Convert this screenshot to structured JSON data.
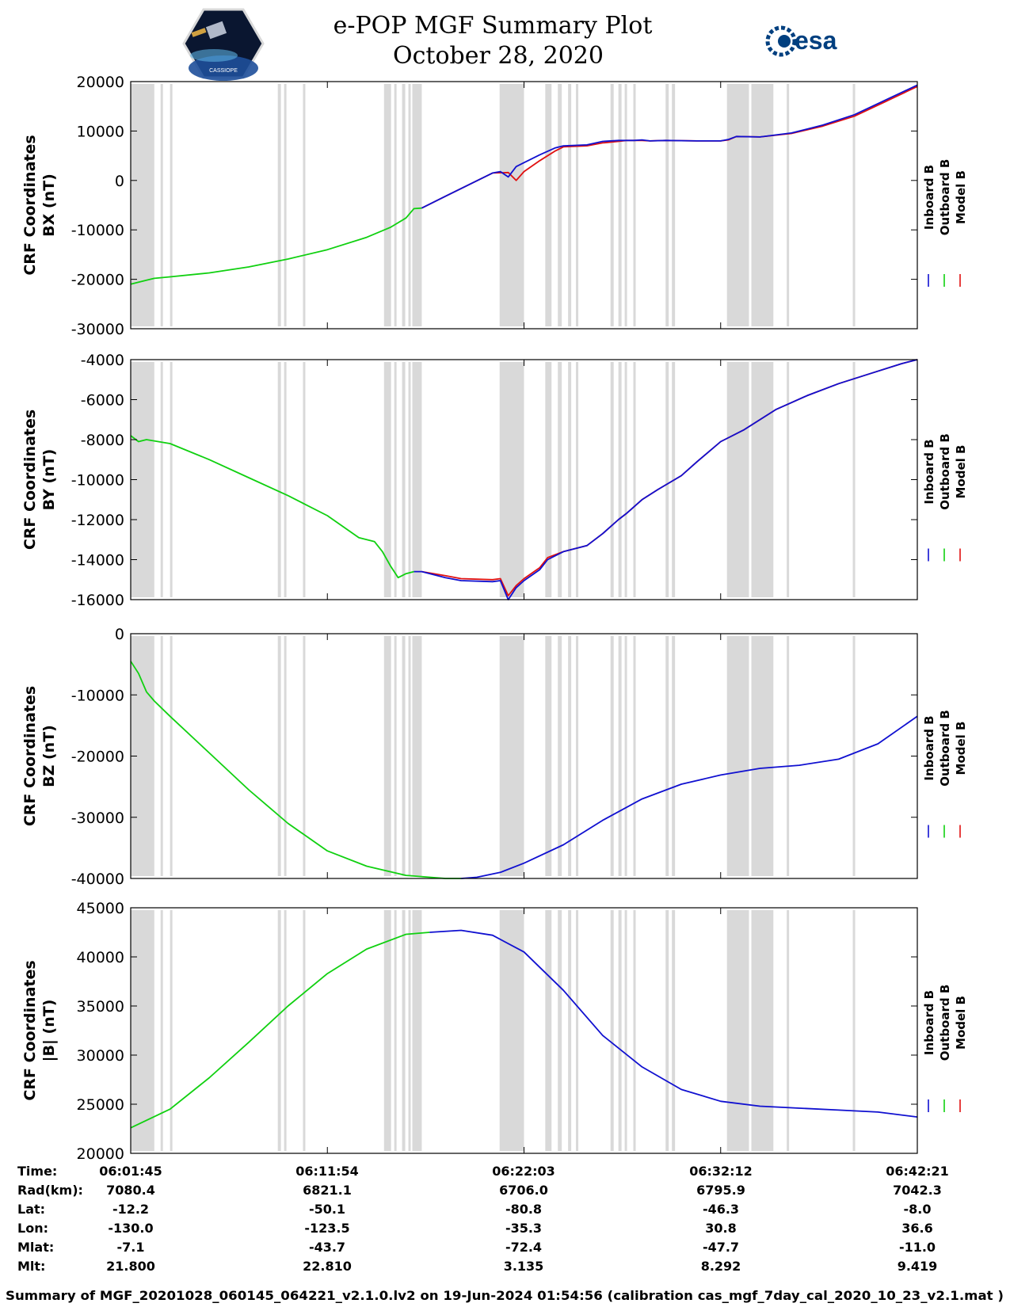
{
  "header": {
    "title_line1": "e-POP MGF Summary Plot",
    "title_line2": "October 28, 2020",
    "logo_left_text": "CASSIOPE",
    "logo_right_text": "esa"
  },
  "legend": {
    "labels": [
      "Inboard B",
      "Outboard B",
      "Model B"
    ],
    "colors": [
      "#1010d0",
      "#10d010",
      "#e01010"
    ]
  },
  "data_gaps": [
    [
      0.0,
      0.03
    ],
    [
      0.038,
      0.041
    ],
    [
      0.05,
      0.053
    ],
    [
      0.187,
      0.191
    ],
    [
      0.195,
      0.198
    ],
    [
      0.219,
      0.222
    ],
    [
      0.322,
      0.331
    ],
    [
      0.335,
      0.338
    ],
    [
      0.345,
      0.349
    ],
    [
      0.353,
      0.356
    ],
    [
      0.358,
      0.37
    ],
    [
      0.469,
      0.5
    ],
    [
      0.527,
      0.535
    ],
    [
      0.543,
      0.548
    ],
    [
      0.556,
      0.56
    ],
    [
      0.566,
      0.569
    ],
    [
      0.61,
      0.614
    ],
    [
      0.62,
      0.624
    ],
    [
      0.628,
      0.631
    ],
    [
      0.639,
      0.642
    ],
    [
      0.68,
      0.684
    ],
    [
      0.688,
      0.692
    ],
    [
      0.758,
      0.786
    ],
    [
      0.789,
      0.817
    ],
    [
      0.834,
      0.837
    ],
    [
      0.918,
      0.921
    ]
  ],
  "chart_data": [
    {
      "type": "line",
      "id": "bx",
      "ylabel_line1": "CRF Coordinates",
      "ylabel_line2": "BX (nT)",
      "ylim": [
        -30000,
        20000
      ],
      "yticks": [
        20000,
        10000,
        0,
        -10000,
        -20000,
        -30000
      ],
      "xlim": [
        0,
        1
      ],
      "series": [
        {
          "name": "Model B",
          "color": "#e01010",
          "x": [
            0.37,
            0.4,
            0.46,
            0.48,
            0.49,
            0.5,
            0.52,
            0.54,
            0.55,
            0.58,
            0.6,
            0.62,
            0.63,
            0.64,
            0.65,
            0.66,
            0.68,
            0.72,
            0.75,
            0.76,
            0.77,
            0.8,
            0.84,
            0.88,
            0.92,
            0.96,
            1.0
          ],
          "y": [
            -5600,
            -3200,
            1500,
            1600,
            0,
            1800,
            4000,
            6000,
            6800,
            7000,
            7600,
            7900,
            8100,
            8100,
            8100,
            8000,
            8100,
            8000,
            8000,
            8200,
            8900,
            8800,
            9500,
            11000,
            13000,
            16000,
            19000
          ]
        },
        {
          "name": "Outboard B",
          "color": "#10d010",
          "x": [
            0.0,
            0.01,
            0.02,
            0.03,
            0.05,
            0.1,
            0.15,
            0.2,
            0.25,
            0.3,
            0.33,
            0.35,
            0.36,
            0.37
          ],
          "y": [
            -21000,
            -20600,
            -20200,
            -19800,
            -19500,
            -18700,
            -17500,
            -15900,
            -14000,
            -11500,
            -9500,
            -7600,
            -5700,
            -5600
          ]
        },
        {
          "name": "Inboard B",
          "color": "#1010d0",
          "x": [
            0.37,
            0.4,
            0.46,
            0.47,
            0.48,
            0.49,
            0.5,
            0.52,
            0.54,
            0.55,
            0.58,
            0.6,
            0.62,
            0.63,
            0.64,
            0.65,
            0.66,
            0.68,
            0.72,
            0.75,
            0.76,
            0.77,
            0.8,
            0.84,
            0.88,
            0.92,
            0.96,
            1.0
          ],
          "y": [
            -5600,
            -3200,
            1500,
            1800,
            700,
            2800,
            3600,
            5200,
            6600,
            7000,
            7200,
            7900,
            8100,
            8100,
            8100,
            8200,
            8000,
            8100,
            8000,
            8000,
            8300,
            8900,
            8800,
            9600,
            11200,
            13300,
            16300,
            19300
          ]
        }
      ]
    },
    {
      "type": "line",
      "id": "by",
      "ylabel_line1": "CRF Coordinates",
      "ylabel_line2": "BY (nT)",
      "ylim": [
        -16000,
        -4000
      ],
      "yticks": [
        -4000,
        -6000,
        -8000,
        -10000,
        -12000,
        -14000,
        -16000
      ],
      "xlim": [
        0,
        1
      ],
      "series": [
        {
          "name": "Model B",
          "color": "#e01010",
          "x": [
            0.37,
            0.4,
            0.42,
            0.46,
            0.47,
            0.48,
            0.49,
            0.5,
            0.52,
            0.53,
            0.55,
            0.58,
            0.6,
            0.62,
            0.63,
            0.65,
            0.67,
            0.7,
            0.72,
            0.75,
            0.76,
            0.78,
            0.82,
            0.86,
            0.9,
            0.94,
            0.98,
            1.0
          ],
          "y": [
            -14600,
            -14800,
            -14950,
            -15000,
            -14950,
            -15800,
            -15300,
            -14950,
            -14400,
            -13900,
            -13600,
            -13300,
            -12700,
            -12000,
            -11700,
            -11000,
            -10500,
            -9800,
            -9100,
            -8100,
            -7900,
            -7500,
            -6500,
            -5800,
            -5200,
            -4700,
            -4200,
            -4000
          ]
        },
        {
          "name": "Outboard B",
          "color": "#10d010",
          "x": [
            0.0,
            0.01,
            0.02,
            0.05,
            0.1,
            0.15,
            0.2,
            0.25,
            0.29,
            0.31,
            0.32,
            0.33,
            0.34,
            0.35,
            0.36
          ],
          "y": [
            -7800,
            -8100,
            -8000,
            -8200,
            -9000,
            -9900,
            -10800,
            -11800,
            -12900,
            -13100,
            -13600,
            -14300,
            -14900,
            -14700,
            -14600
          ]
        },
        {
          "name": "Inboard B",
          "color": "#1010d0",
          "x": [
            0.36,
            0.37,
            0.4,
            0.42,
            0.46,
            0.47,
            0.48,
            0.49,
            0.5,
            0.52,
            0.53,
            0.55,
            0.58,
            0.6,
            0.62,
            0.63,
            0.65,
            0.67,
            0.7,
            0.72,
            0.75,
            0.76,
            0.78,
            0.82,
            0.86,
            0.9,
            0.94,
            0.98,
            1.0
          ],
          "y": [
            -14600,
            -14600,
            -14900,
            -15050,
            -15100,
            -15050,
            -16000,
            -15400,
            -15050,
            -14500,
            -14000,
            -13600,
            -13300,
            -12700,
            -12000,
            -11700,
            -11000,
            -10500,
            -9800,
            -9100,
            -8100,
            -7900,
            -7500,
            -6500,
            -5800,
            -5200,
            -4700,
            -4200,
            -4000
          ]
        }
      ]
    },
    {
      "type": "line",
      "id": "bz",
      "ylabel_line1": "CRF Coordinates",
      "ylabel_line2": "BZ (nT)",
      "ylim": [
        -40000,
        0
      ],
      "yticks": [
        0,
        -10000,
        -20000,
        -30000,
        -40000
      ],
      "xlim": [
        0,
        1
      ],
      "series": [
        {
          "name": "Model B",
          "color": "#e01010",
          "x": [],
          "y": []
        },
        {
          "name": "Outboard B",
          "color": "#10d010",
          "x": [
            0.0,
            0.01,
            0.02,
            0.03,
            0.05,
            0.1,
            0.15,
            0.2,
            0.25,
            0.3,
            0.35,
            0.4,
            0.42
          ],
          "y": [
            -4500,
            -6500,
            -9500,
            -11000,
            -13500,
            -19500,
            -25500,
            -31000,
            -35500,
            -38000,
            -39500,
            -40000,
            -40000
          ]
        },
        {
          "name": "Inboard B",
          "color": "#1010d0",
          "x": [
            0.42,
            0.44,
            0.47,
            0.5,
            0.55,
            0.6,
            0.65,
            0.7,
            0.75,
            0.8,
            0.85,
            0.9,
            0.95,
            1.0
          ],
          "y": [
            -40000,
            -39800,
            -39000,
            -37500,
            -34500,
            -30500,
            -27000,
            -24600,
            -23100,
            -22000,
            -21500,
            -20500,
            -18000,
            -13500
          ]
        }
      ]
    },
    {
      "type": "line",
      "id": "bmag",
      "ylabel_line1": "CRF Coordinates",
      "ylabel_line2": "|B| (nT)",
      "ylim": [
        20000,
        45000
      ],
      "yticks": [
        45000,
        40000,
        35000,
        30000,
        25000,
        20000
      ],
      "xlim": [
        0,
        1
      ],
      "series": [
        {
          "name": "Model B",
          "color": "#e01010",
          "x": [],
          "y": []
        },
        {
          "name": "Outboard B",
          "color": "#10d010",
          "x": [
            0.0,
            0.05,
            0.1,
            0.15,
            0.2,
            0.25,
            0.3,
            0.35,
            0.38
          ],
          "y": [
            22600,
            24500,
            27700,
            31300,
            35000,
            38300,
            40800,
            42300,
            42500
          ]
        },
        {
          "name": "Inboard B",
          "color": "#1010d0",
          "x": [
            0.38,
            0.42,
            0.46,
            0.5,
            0.55,
            0.6,
            0.65,
            0.7,
            0.75,
            0.8,
            0.85,
            0.9,
            0.95,
            1.0
          ],
          "y": [
            42500,
            42700,
            42200,
            40500,
            36600,
            32000,
            28800,
            26500,
            25300,
            24800,
            24600,
            24400,
            24200,
            23700
          ]
        }
      ]
    }
  ],
  "info_table": {
    "row_labels": [
      "Time:",
      "Rad(km):",
      "Lat:",
      "Lon:",
      "Mlat:",
      "Mlt:"
    ],
    "columns": [
      [
        "06:01:45",
        "7080.4",
        "-12.2",
        "-130.0",
        "-7.1",
        "21.800"
      ],
      [
        "06:11:54",
        "6821.1",
        "-50.1",
        "-123.5",
        "-43.7",
        "22.810"
      ],
      [
        "06:22:03",
        "6706.0",
        "-80.8",
        "-35.3",
        "-72.4",
        "3.135"
      ],
      [
        "06:32:12",
        "6795.9",
        "-46.3",
        "30.8",
        "-47.7",
        "8.292"
      ],
      [
        "06:42:21",
        "7042.3",
        "-8.0",
        "36.6",
        "-11.0",
        "9.419"
      ]
    ]
  },
  "footer": {
    "text": "Summary of MGF_20201028_060145_064221_v2.1.0.lv2 on 19-Jun-2024 01:54:56 (calibration cas_mgf_7day_cal_2020_10_23_v2.1.mat )"
  }
}
